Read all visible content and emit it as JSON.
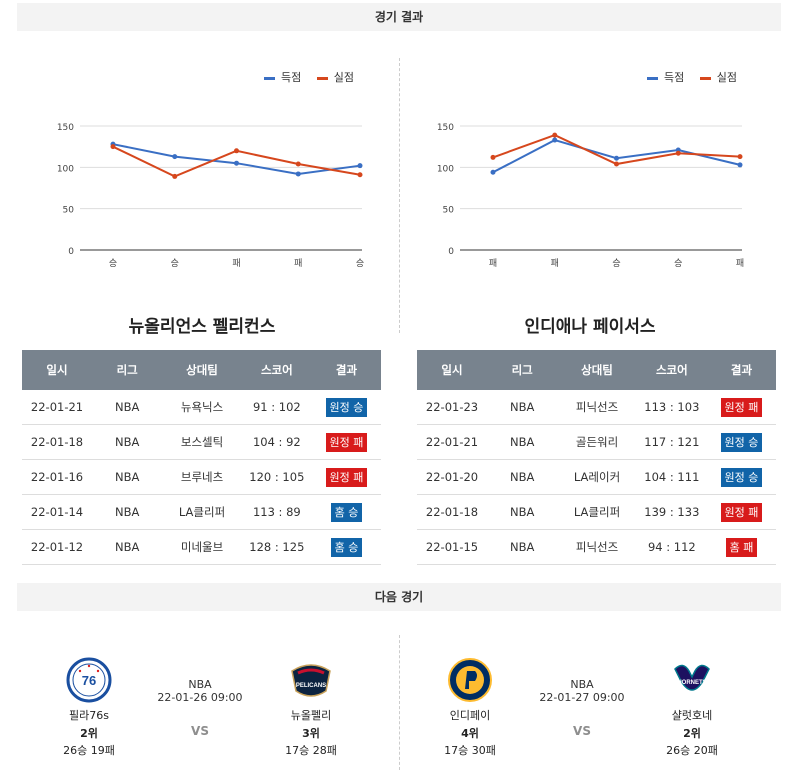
{
  "sections": {
    "results_title": "경기 결과",
    "next_title": "다음 경기"
  },
  "legend": {
    "scored": "득점",
    "conceded": "실점"
  },
  "colors": {
    "scored": "#3a6fc4",
    "conceded": "#d6471d",
    "win_badge": "#1164a8",
    "loss_badge": "#d81b1b",
    "header_bg": "#78838e"
  },
  "table_headers": [
    "일시",
    "리그",
    "상대팀",
    "스코어",
    "결과"
  ],
  "left_team": {
    "name": "뉴올리언스 펠리컨스",
    "chart_data": {
      "type": "line",
      "categories": [
        "승",
        "승",
        "패",
        "패",
        "승"
      ],
      "series": [
        {
          "name": "득점",
          "values": [
            128,
            113,
            105,
            92,
            102
          ]
        },
        {
          "name": "실점",
          "values": [
            125,
            89,
            120,
            104,
            91
          ]
        }
      ],
      "ylim": [
        0,
        150
      ],
      "yticks": [
        "0",
        "50",
        "100",
        "150"
      ]
    },
    "games": [
      {
        "date": "22-01-21",
        "league": "NBA",
        "opponent": "뉴욕닉스",
        "score": "91 : 102",
        "result": "원정 승",
        "color": "blue"
      },
      {
        "date": "22-01-18",
        "league": "NBA",
        "opponent": "보스셀틱",
        "score": "104 : 92",
        "result": "원정 패",
        "color": "red"
      },
      {
        "date": "22-01-16",
        "league": "NBA",
        "opponent": "브루네츠",
        "score": "120 : 105",
        "result": "원정 패",
        "color": "red"
      },
      {
        "date": "22-01-14",
        "league": "NBA",
        "opponent": "LA클리퍼",
        "score": "113 : 89",
        "result": "홈 승",
        "color": "blue"
      },
      {
        "date": "22-01-12",
        "league": "NBA",
        "opponent": "미네울브",
        "score": "128 : 125",
        "result": "홈 승",
        "color": "blue"
      }
    ]
  },
  "right_team": {
    "name": "인디애나 페이서스",
    "chart_data": {
      "type": "line",
      "categories": [
        "패",
        "패",
        "승",
        "승",
        "패"
      ],
      "series": [
        {
          "name": "득점",
          "values": [
            94,
            133,
            111,
            121,
            103
          ]
        },
        {
          "name": "실점",
          "values": [
            112,
            139,
            104,
            117,
            113
          ]
        }
      ],
      "ylim": [
        0,
        150
      ],
      "yticks": [
        "0",
        "50",
        "100",
        "150"
      ]
    },
    "games": [
      {
        "date": "22-01-23",
        "league": "NBA",
        "opponent": "피닉선즈",
        "score": "113 : 103",
        "result": "원정 패",
        "color": "red"
      },
      {
        "date": "22-01-21",
        "league": "NBA",
        "opponent": "골든워리",
        "score": "117 : 121",
        "result": "원정 승",
        "color": "blue"
      },
      {
        "date": "22-01-20",
        "league": "NBA",
        "opponent": "LA레이커",
        "score": "104 : 111",
        "result": "원정 승",
        "color": "blue"
      },
      {
        "date": "22-01-18",
        "league": "NBA",
        "opponent": "LA클리퍼",
        "score": "139 : 133",
        "result": "원정 패",
        "color": "red"
      },
      {
        "date": "22-01-15",
        "league": "NBA",
        "opponent": "피닉선즈",
        "score": "94 : 112",
        "result": "홈 패",
        "color": "red"
      }
    ]
  },
  "next_games": [
    {
      "league": "NBA",
      "datetime": "22-01-26 09:00",
      "vs": "VS",
      "home": {
        "name": "필라76s",
        "rank": "2위",
        "record": "26승 19패",
        "logo": "philadelphia-76ers-logo"
      },
      "away": {
        "name": "뉴올펠리",
        "rank": "3위",
        "record": "17승 28패",
        "logo": "new-orleans-pelicans-logo"
      }
    },
    {
      "league": "NBA",
      "datetime": "22-01-27 09:00",
      "vs": "VS",
      "home": {
        "name": "인디페이",
        "rank": "4위",
        "record": "17승 30패",
        "logo": "indiana-pacers-logo"
      },
      "away": {
        "name": "샬럿호네",
        "rank": "2위",
        "record": "26승 20패",
        "logo": "charlotte-hornets-logo"
      }
    }
  ]
}
